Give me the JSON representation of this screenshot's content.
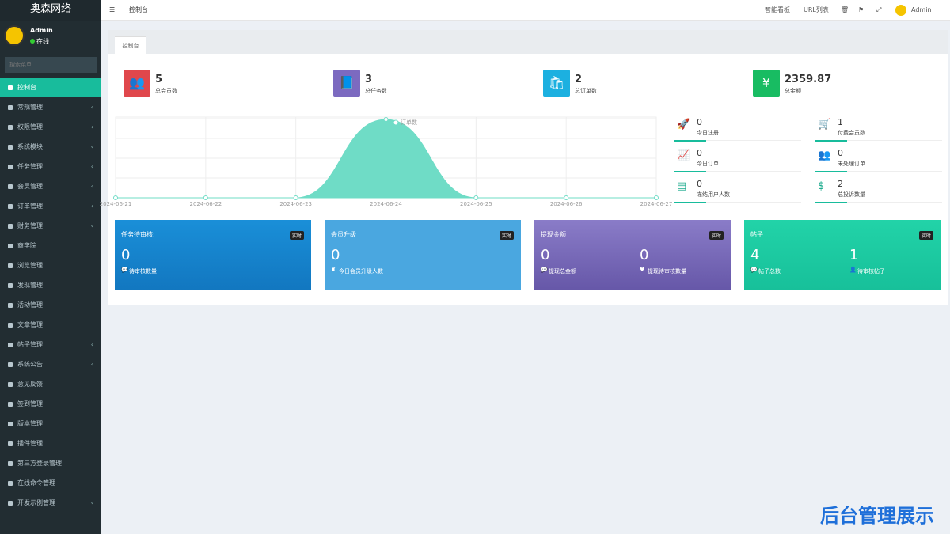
{
  "sidebar": {
    "brand": "奥森网络",
    "user": {
      "name": "Admin",
      "status": "在线"
    },
    "search_placeholder": "搜索菜单",
    "menu": [
      "控制台",
      "常规管理",
      "权限管理",
      "系统模块",
      "任务管理",
      "会员管理",
      "订单管理",
      "财务管理",
      "商学院",
      "浏览管理",
      "发现管理",
      "活动管理",
      "文章管理",
      "帖子管理",
      "系统公告",
      "意见反馈",
      "签到管理",
      "版本管理",
      "插件管理",
      "第三方登录管理",
      "在线命令管理",
      "开发示例管理"
    ]
  },
  "topbar": {
    "tab": "控制台",
    "links": [
      "智能看板",
      "URL列表"
    ],
    "user": "Admin"
  },
  "page_tab": "控制台",
  "stats": [
    {
      "value": 5,
      "label": "总会员数"
    },
    {
      "value": 3,
      "label": "总任务数"
    },
    {
      "value": 2,
      "label": "总订单数"
    },
    {
      "value": 2359.87,
      "label": "总金额"
    }
  ],
  "chart_data": {
    "type": "area",
    "x": [
      "2024-06-21",
      "2024-06-22",
      "2024-06-23",
      "2024-06-24",
      "2024-06-25",
      "2024-06-26",
      "2024-06-27"
    ],
    "series": [
      {
        "name": "订单数",
        "color": "#6fdcc6",
        "values": [
          0,
          0,
          0,
          2,
          0,
          0,
          0
        ]
      }
    ]
  },
  "mini_stats": [
    {
      "value": 0,
      "label": "今日注册"
    },
    {
      "value": 1,
      "label": "付费会员数"
    },
    {
      "value": 0,
      "label": "今日订单"
    },
    {
      "value": 0,
      "label": "未处理订单"
    },
    {
      "value": 0,
      "label": "冻结用户人数"
    },
    {
      "value": 2,
      "label": "总投诉数量"
    }
  ],
  "cards": [
    {
      "title": "任务待审核:",
      "badge": "实时",
      "items": [
        {
          "value": 0,
          "label": "待审核数量"
        }
      ]
    },
    {
      "title": "会员升级",
      "badge": "实时",
      "items": [
        {
          "value": 0,
          "label": "今日会员升级人数"
        }
      ]
    },
    {
      "title": "提现金额",
      "badge": "实时",
      "items": [
        {
          "value": 0,
          "label": "提现总金额"
        },
        {
          "value": 0,
          "label": "提现待审核数量"
        }
      ]
    },
    {
      "title": "帖子",
      "badge": "实时",
      "items": [
        {
          "value": 4,
          "label": "帖子总数"
        },
        {
          "value": 1,
          "label": "待审核帖子"
        }
      ]
    }
  ],
  "watermark": "后台管理展示"
}
